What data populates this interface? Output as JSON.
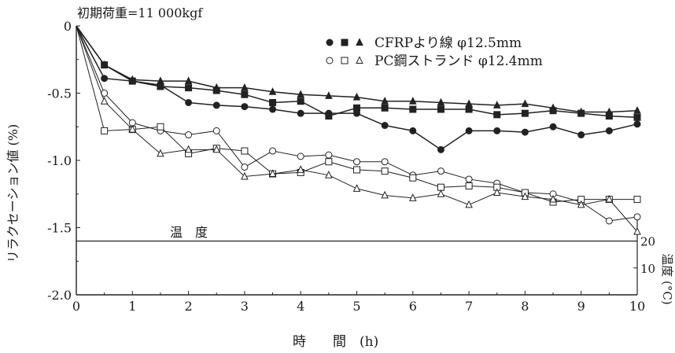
{
  "chart_data": {
    "type": "line",
    "annotation": "初期荷重=11 000kgf",
    "xlabel": "時　　間　(h)",
    "ylabel": "リラクセーション値 (%)",
    "y2label": "温度 (°C)",
    "temperature_label": "温　度",
    "xlim": [
      0,
      10
    ],
    "ylim": [
      -2.0,
      0
    ],
    "x_ticks": [
      "0",
      "1",
      "2",
      "3",
      "4",
      "5",
      "6",
      "7",
      "8",
      "9",
      "10"
    ],
    "y_ticks": [
      "0",
      "-0.5",
      "-1.0",
      "-1.5",
      "-2.0"
    ],
    "y2_ticks": [
      "20",
      "10"
    ],
    "legend": {
      "placement": "top-right",
      "cfrp_label": "CFRPより線 φ12.5mm",
      "pc_label": "PC鋼ストランド φ12.4mm"
    },
    "series": [
      {
        "group": "CFRP",
        "marker": "filled-circle",
        "x": [
          0,
          0.5,
          1,
          1.5,
          2,
          2.5,
          3,
          3.5,
          4,
          4.5,
          5,
          5.5,
          6,
          6.5,
          7,
          7.5,
          8,
          8.5,
          9,
          9.5,
          10
        ],
        "values": [
          0,
          -0.39,
          -0.41,
          -0.44,
          -0.57,
          -0.59,
          -0.6,
          -0.62,
          -0.65,
          -0.65,
          -0.65,
          -0.74,
          -0.78,
          -0.92,
          -0.78,
          -0.78,
          -0.79,
          -0.75,
          -0.81,
          -0.78,
          -0.73
        ]
      },
      {
        "group": "CFRP",
        "marker": "filled-square",
        "x": [
          0,
          0.5,
          1,
          1.5,
          2,
          2.5,
          3,
          3.5,
          4,
          4.5,
          5,
          5.5,
          6,
          6.5,
          7,
          7.5,
          8,
          8.5,
          9,
          9.5,
          10
        ],
        "values": [
          0,
          -0.29,
          -0.41,
          -0.45,
          -0.46,
          -0.48,
          -0.51,
          -0.57,
          -0.56,
          -0.67,
          -0.61,
          -0.61,
          -0.62,
          -0.62,
          -0.62,
          -0.66,
          -0.65,
          -0.63,
          -0.65,
          -0.67,
          -0.68
        ]
      },
      {
        "group": "CFRP",
        "marker": "filled-triangle",
        "x": [
          0,
          0.5,
          1,
          1.5,
          2,
          2.5,
          3,
          3.5,
          4,
          4.5,
          5,
          5.5,
          6,
          6.5,
          7,
          7.5,
          8,
          8.5,
          9,
          9.5,
          10
        ],
        "values": [
          0,
          -0.29,
          -0.4,
          -0.41,
          -0.41,
          -0.46,
          -0.46,
          -0.49,
          -0.51,
          -0.52,
          -0.53,
          -0.56,
          -0.56,
          -0.57,
          -0.58,
          -0.59,
          -0.58,
          -0.61,
          -0.64,
          -0.64,
          -0.63
        ]
      },
      {
        "group": "PC",
        "marker": "open-circle",
        "x": [
          0,
          0.5,
          1,
          1.5,
          2,
          2.5,
          3,
          3.5,
          4,
          4.5,
          5,
          5.5,
          6,
          6.5,
          7,
          7.5,
          8,
          8.5,
          9,
          9.5,
          10
        ],
        "values": [
          0,
          -0.5,
          -0.72,
          -0.78,
          -0.81,
          -0.78,
          -1.05,
          -0.93,
          -0.97,
          -0.96,
          -1.01,
          -1.01,
          -1.11,
          -1.08,
          -1.14,
          -1.17,
          -1.24,
          -1.25,
          -1.31,
          -1.45,
          -1.42
        ]
      },
      {
        "group": "PC",
        "marker": "open-square",
        "x": [
          0,
          0.5,
          1,
          1.5,
          2,
          2.5,
          3,
          3.5,
          4,
          4.5,
          5,
          5.5,
          6,
          6.5,
          7,
          7.5,
          8,
          8.5,
          9,
          9.5,
          10
        ],
        "values": [
          0,
          -0.78,
          -0.77,
          -0.75,
          -0.95,
          -0.91,
          -0.93,
          -1.1,
          -1.09,
          -1.01,
          -1.07,
          -1.08,
          -1.13,
          -1.2,
          -1.19,
          -1.2,
          -1.24,
          -1.31,
          -1.29,
          -1.29,
          -1.29
        ]
      },
      {
        "group": "PC",
        "marker": "open-triangle",
        "x": [
          0,
          0.5,
          1,
          1.5,
          2,
          2.5,
          3,
          3.5,
          4,
          4.5,
          5,
          5.5,
          6,
          6.5,
          7,
          7.5,
          8,
          8.5,
          9,
          9.5,
          10
        ],
        "values": [
          0,
          -0.56,
          -0.77,
          -0.95,
          -0.92,
          -0.92,
          -1.12,
          -1.1,
          -1.07,
          -1.11,
          -1.21,
          -1.26,
          -1.28,
          -1.25,
          -1.33,
          -1.24,
          -1.27,
          -1.29,
          -1.33,
          -1.29,
          -1.53
        ]
      }
    ],
    "temperature": {
      "x": [
        0,
        10
      ],
      "values": [
        20,
        20
      ],
      "y2lim": [
        0,
        25
      ]
    },
    "grid": false
  }
}
